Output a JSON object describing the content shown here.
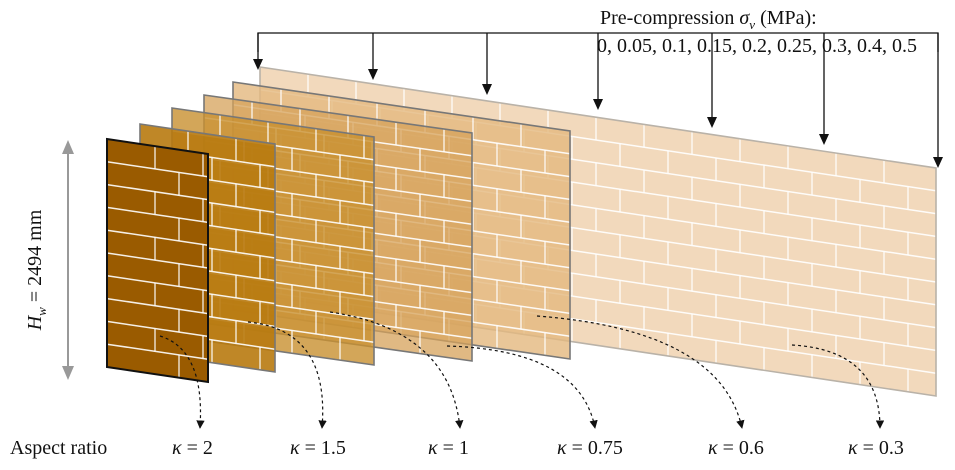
{
  "precompression": {
    "title_prefix": "Pre-compression ",
    "symbol": "σ",
    "subscript": "v",
    "title_suffix": " (MPa):",
    "values": "0, 0.05, 0.1, 0.15, 0.2, 0.25, 0.3, 0.4, 0.5"
  },
  "height_label": {
    "symbol": "H",
    "subscript": "w",
    "value": " = 2494 mm"
  },
  "aspect_ratio": {
    "label": "Aspect ratio",
    "symbol": "κ",
    "values": [
      "= 2",
      "= 1.5",
      "= 1",
      "= 0.75",
      "= 0.6",
      "= 0.3"
    ]
  },
  "colors": {
    "walls": [
      "#f0d2b0",
      "#e3b87e",
      "#d6a25a",
      "#c8902f",
      "#b87a10",
      "#9a5b00"
    ],
    "mortar": "#ffffff",
    "arrow": "#111111"
  }
}
